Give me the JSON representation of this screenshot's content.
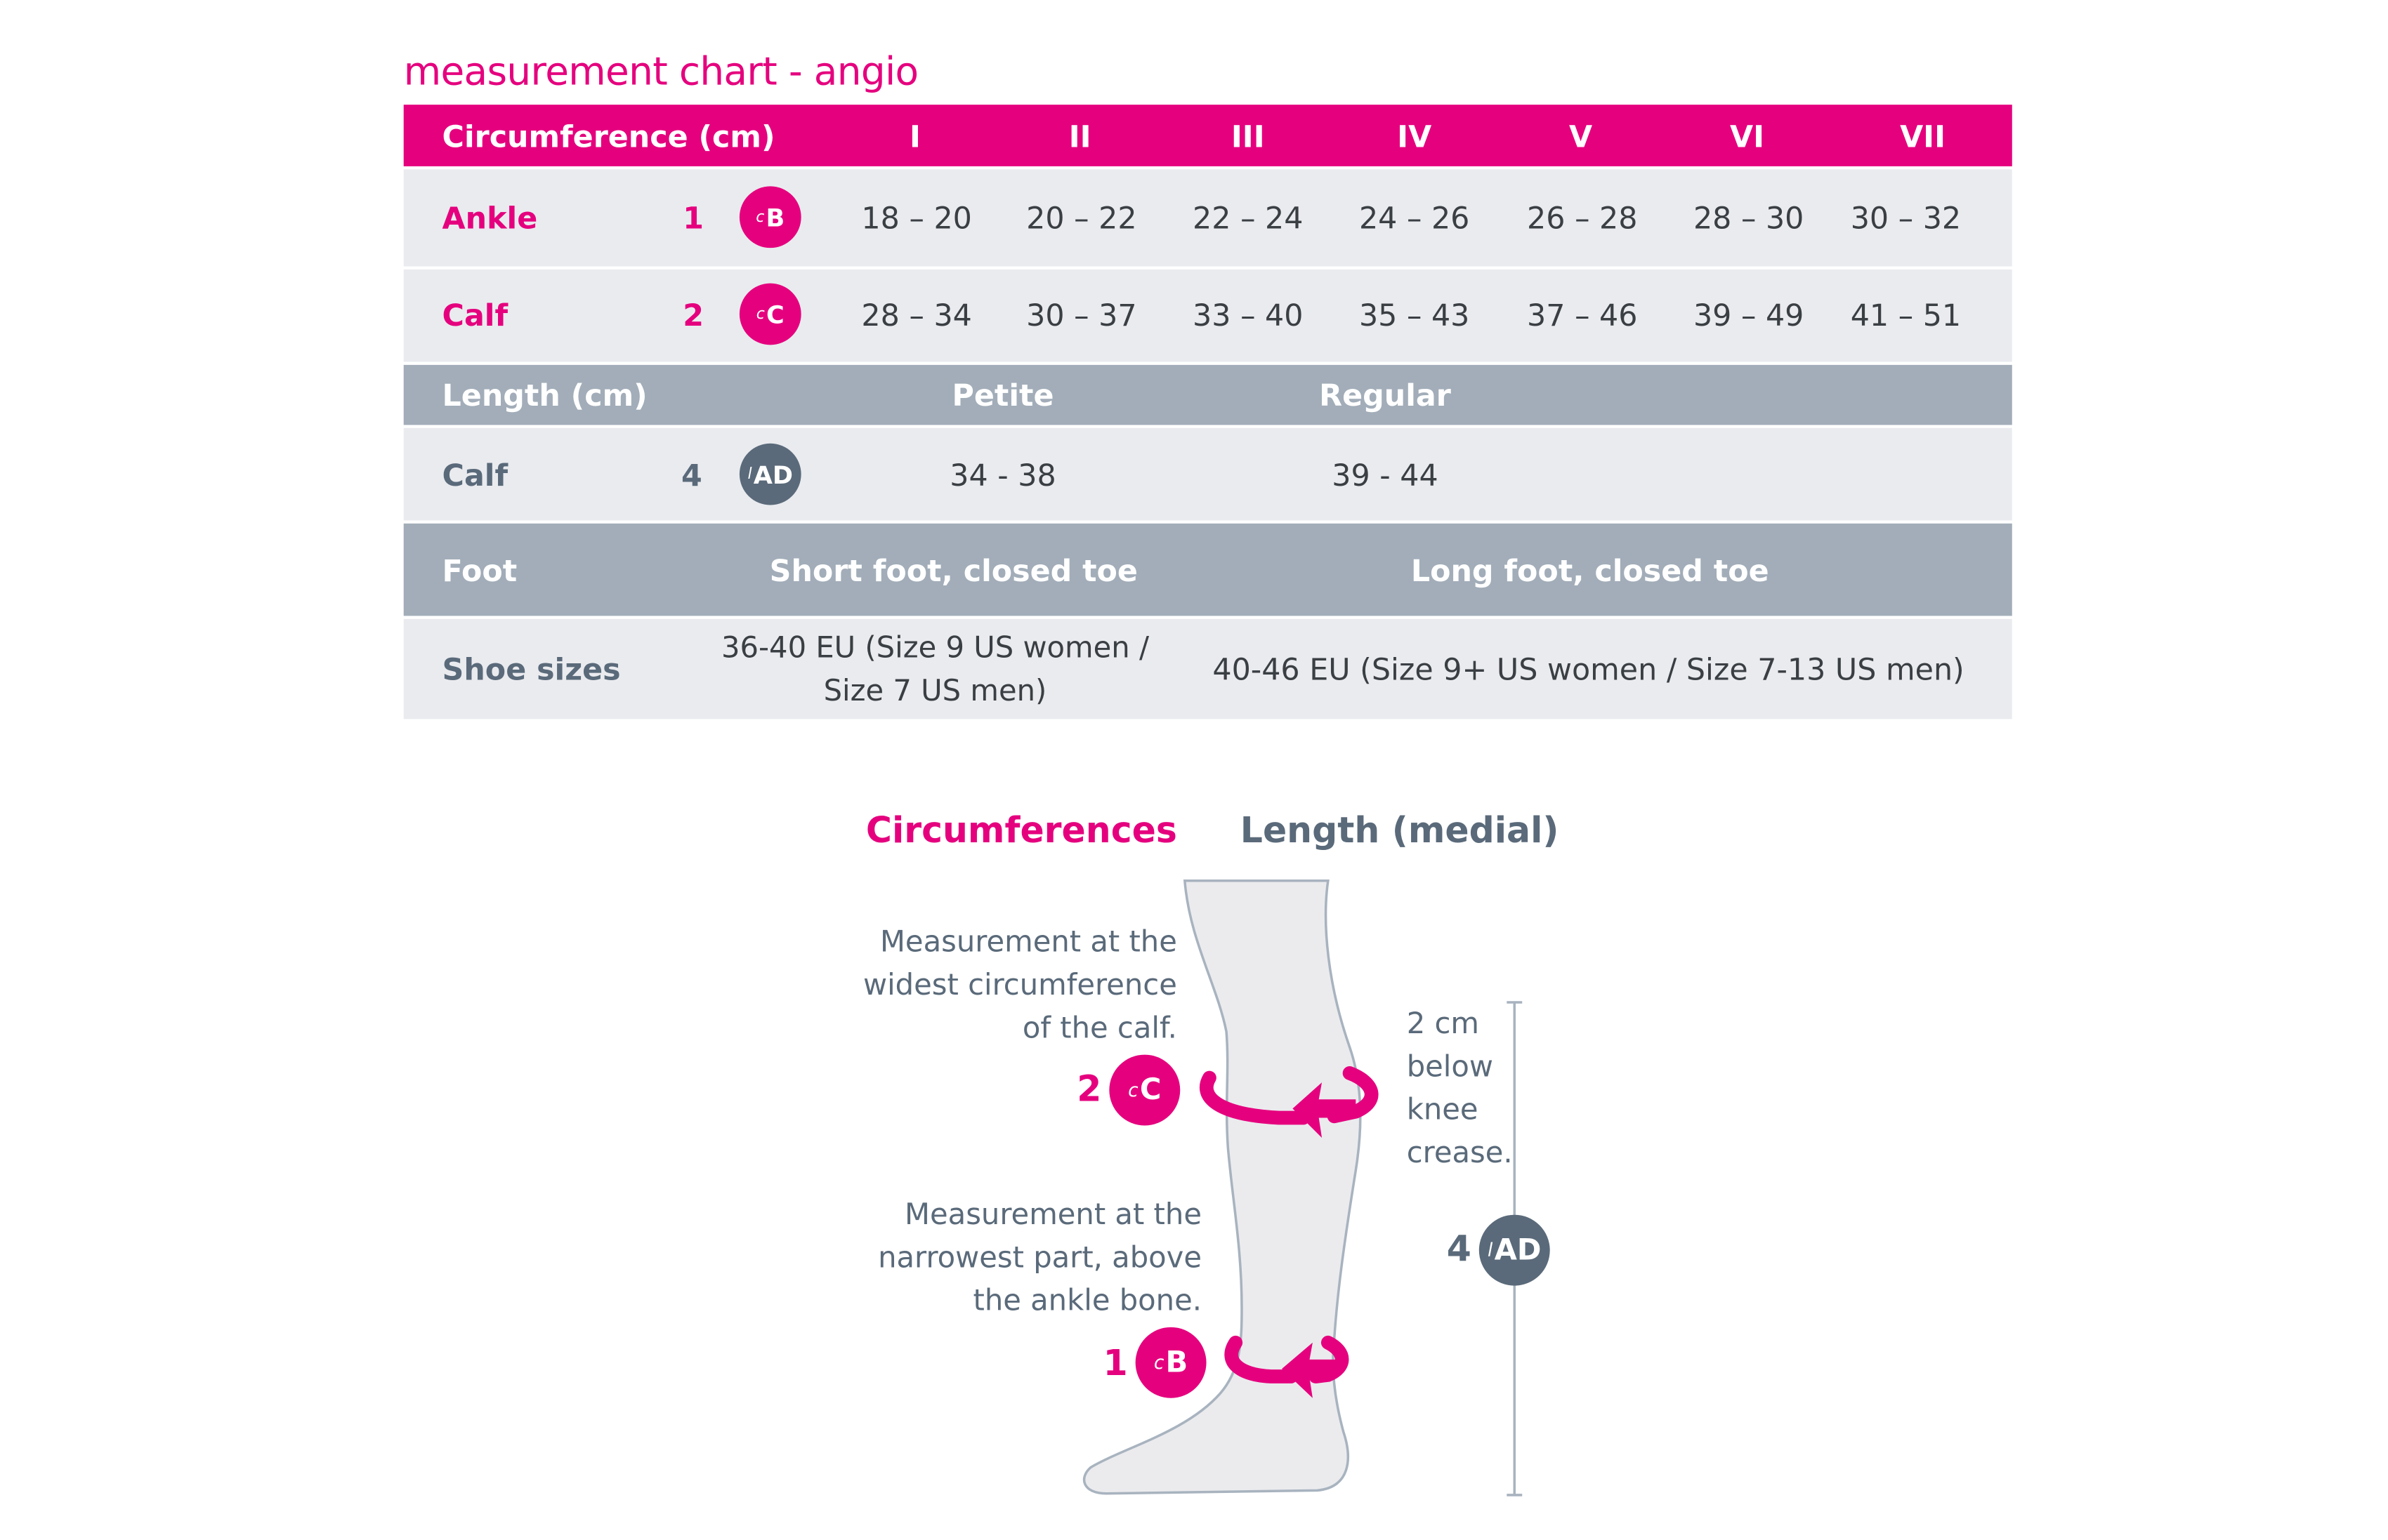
{
  "title": "measurement chart - angio",
  "circumference": {
    "header": "Circumference (cm)",
    "sizes": [
      "I",
      "II",
      "III",
      "IV",
      "V",
      "VI",
      "VII"
    ],
    "rows": [
      {
        "label": "Ankle",
        "number": "1",
        "badge_prefix": "c",
        "badge_letter": "B",
        "values": [
          "18 – 20",
          "20 – 22",
          "22 – 24",
          "24 – 26",
          "26 – 28",
          "28 – 30",
          "30 – 32"
        ]
      },
      {
        "label": "Calf",
        "number": "2",
        "badge_prefix": "c",
        "badge_letter": "C",
        "values": [
          "28 – 34",
          "30 – 37",
          "33 – 40",
          "35 – 43",
          "37 – 46",
          "39 – 49",
          "41 – 51"
        ]
      }
    ]
  },
  "length": {
    "header": "Length (cm)",
    "columns": [
      "Petite",
      "Regular"
    ],
    "row": {
      "label": "Calf",
      "number": "4",
      "badge_prefix": "l",
      "badge_letter": "AD",
      "values": [
        "34 - 38",
        "39 - 44"
      ]
    }
  },
  "foot": {
    "header": "Foot",
    "columns": [
      "Short foot, closed toe",
      "Long foot, closed toe"
    ],
    "row": {
      "label": "Shoe sizes",
      "short_line1": "36-40 EU  (Size 9 US women /",
      "short_line2": "Size 7 US men)",
      "long": "40-46 EU   (Size 9+ US women / Size 7-13 US men)"
    }
  },
  "diagram": {
    "heading_circ": "Circumferences",
    "heading_len": "Length (medial)",
    "calf_note": [
      "Measurement at the",
      "widest circumference",
      "of the calf."
    ],
    "ankle_note": [
      "Measurement at the",
      "narrowest part, above",
      "the ankle bone."
    ],
    "length_note": [
      "2 cm",
      "below",
      "knee",
      "crease."
    ],
    "marker_calf": {
      "number": "2",
      "prefix": "c",
      "letter": "C"
    },
    "marker_ankle": {
      "number": "1",
      "prefix": "c",
      "letter": "B"
    },
    "marker_length": {
      "number": "4",
      "prefix": "l",
      "letter": "AD"
    }
  },
  "colors": {
    "accent": "#e5007e",
    "slate": "#5a6a7a",
    "band_grey": "#a2adb9",
    "row_light": "#eaebef",
    "leg_fill": "#ebebee",
    "leg_stroke": "#a8b3bf"
  }
}
